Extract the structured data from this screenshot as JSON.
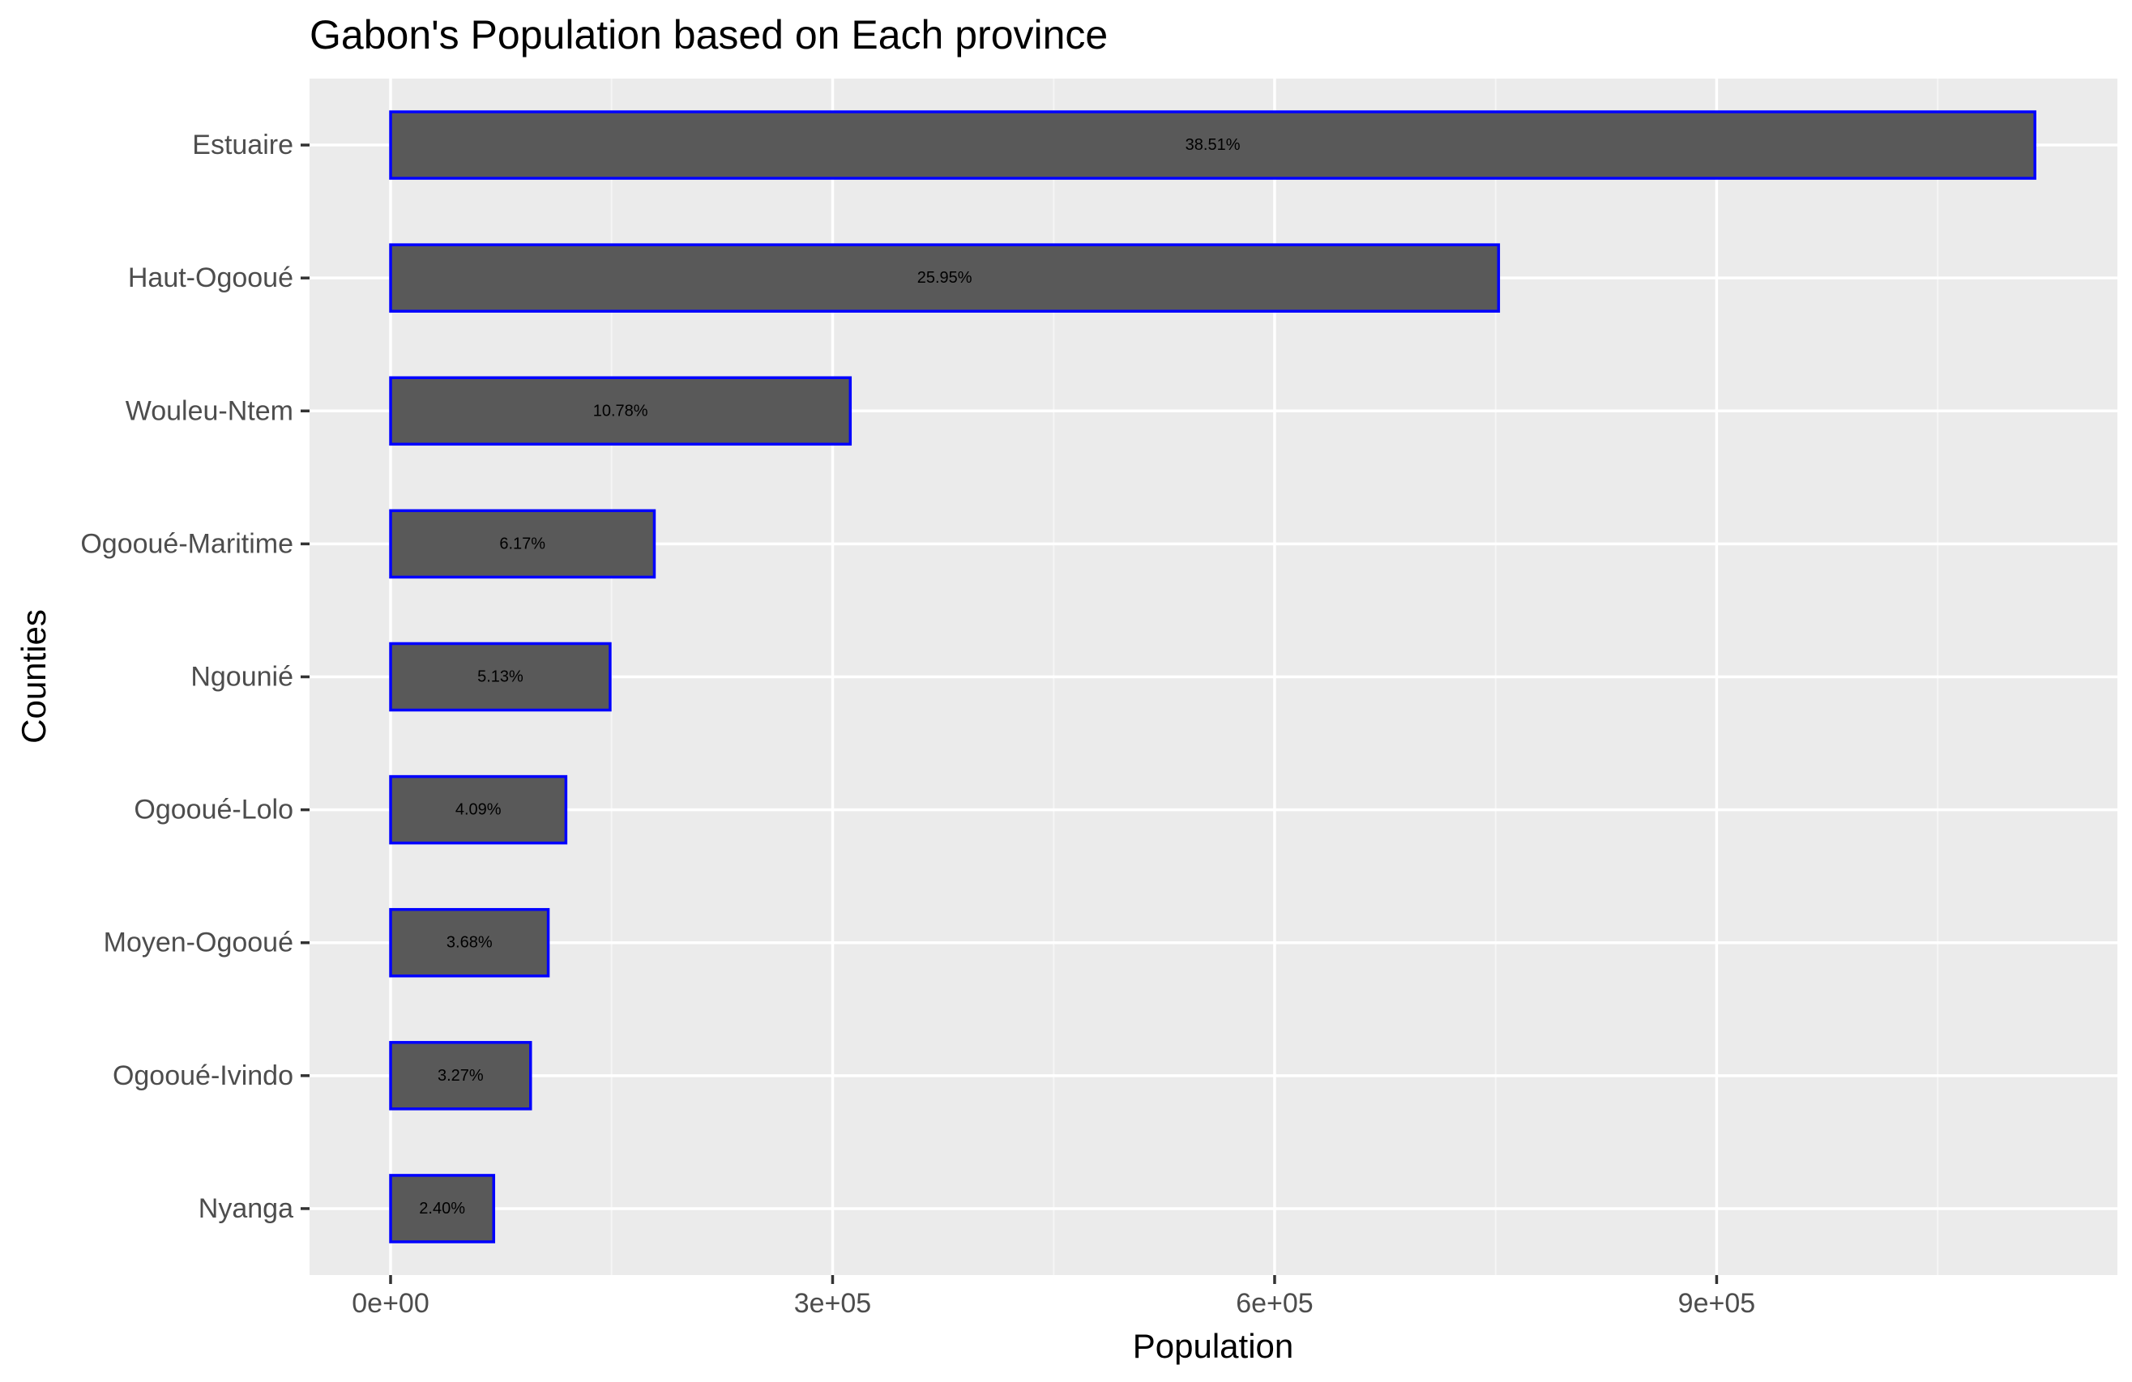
{
  "chart_data": {
    "type": "bar",
    "orientation": "horizontal",
    "title": "Gabon's Population based on Each province",
    "xlabel": "Population",
    "ylabel": "Counties",
    "categories": [
      "Estuaire",
      "Haut-Ogooué",
      "Wouleu-Ntem",
      "Ogooué-Maritime",
      "Ngounié",
      "Ogooué-Lolo",
      "Moyen-Ogooué",
      "Ogooué-Ivindo",
      "Nyanga"
    ],
    "values": [
      1116000,
      752000,
      312000,
      179000,
      149000,
      119000,
      107000,
      95000,
      70000
    ],
    "bar_labels": [
      "38.51%",
      "25.95%",
      "10.78%",
      "6.17%",
      "5.13%",
      "4.09%",
      "3.68%",
      "3.27%",
      "2.40%"
    ],
    "xlim": [
      -55000,
      1172000
    ],
    "xticks": [
      0,
      300000,
      600000,
      900000
    ],
    "xtick_labels": [
      "0e+00",
      "3e+05",
      "6e+05",
      "9e+05"
    ],
    "grid": true,
    "legend": "none",
    "colors": {
      "panel_background": "#ebebeb",
      "grid_major": "#ffffff",
      "grid_minor": "#f5f5f5",
      "bar_fill": "#595959",
      "bar_outline": "#0000ff",
      "tick_text": "#4d4d4d",
      "tick_mark": "#333333"
    }
  }
}
